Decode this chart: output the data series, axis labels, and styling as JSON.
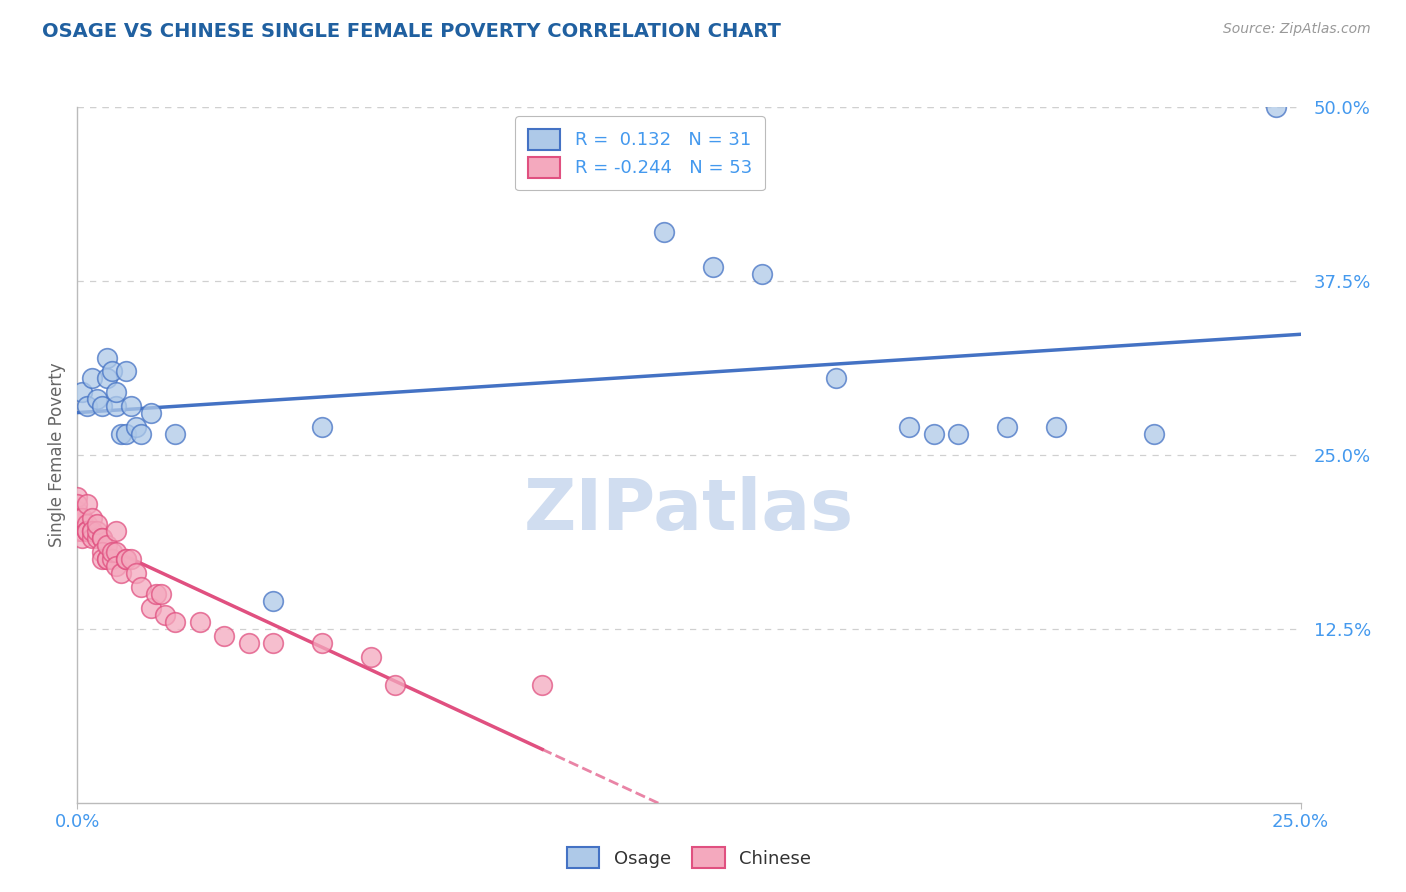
{
  "title": "OSAGE VS CHINESE SINGLE FEMALE POVERTY CORRELATION CHART",
  "source_text": "Source: ZipAtlas.com",
  "ylabel": "Single Female Poverty",
  "xlim": [
    0.0,
    0.25
  ],
  "ylim": [
    0.0,
    0.5
  ],
  "ytick_labels": [
    "12.5%",
    "25.0%",
    "37.5%",
    "50.0%"
  ],
  "ytick_vals": [
    0.125,
    0.25,
    0.375,
    0.5
  ],
  "xtick_labels": [
    "0.0%",
    "25.0%"
  ],
  "xtick_vals": [
    0.0,
    0.25
  ],
  "legend_r_osage": "0.132",
  "legend_n_osage": "31",
  "legend_r_chinese": "-0.244",
  "legend_n_chinese": "53",
  "osage_color": "#aec9e8",
  "chinese_color": "#f4a9be",
  "line_osage_color": "#4472c4",
  "line_chinese_color": "#e05080",
  "title_color": "#2060a0",
  "axis_label_color": "#666666",
  "tick_color": "#4499ee",
  "grid_color": "#d0d0d0",
  "background_color": "#ffffff",
  "osage_x": [
    0.001,
    0.002,
    0.003,
    0.004,
    0.005,
    0.006,
    0.006,
    0.007,
    0.008,
    0.008,
    0.009,
    0.01,
    0.01,
    0.011,
    0.012,
    0.013,
    0.015,
    0.02,
    0.04,
    0.05,
    0.12,
    0.13,
    0.14,
    0.155,
    0.17,
    0.175,
    0.18,
    0.19,
    0.2,
    0.22,
    0.245
  ],
  "osage_y": [
    0.295,
    0.285,
    0.305,
    0.29,
    0.285,
    0.305,
    0.32,
    0.31,
    0.285,
    0.295,
    0.265,
    0.31,
    0.265,
    0.285,
    0.27,
    0.265,
    0.28,
    0.265,
    0.145,
    0.27,
    0.41,
    0.385,
    0.38,
    0.305,
    0.27,
    0.265,
    0.265,
    0.27,
    0.27,
    0.265,
    0.5
  ],
  "chinese_x": [
    0.0,
    0.0,
    0.0,
    0.0,
    0.0,
    0.001,
    0.001,
    0.001,
    0.001,
    0.001,
    0.002,
    0.002,
    0.002,
    0.002,
    0.002,
    0.003,
    0.003,
    0.003,
    0.003,
    0.004,
    0.004,
    0.004,
    0.005,
    0.005,
    0.005,
    0.005,
    0.006,
    0.006,
    0.006,
    0.007,
    0.007,
    0.008,
    0.008,
    0.008,
    0.009,
    0.01,
    0.01,
    0.011,
    0.012,
    0.013,
    0.015,
    0.016,
    0.017,
    0.018,
    0.02,
    0.025,
    0.03,
    0.035,
    0.04,
    0.05,
    0.06,
    0.065,
    0.095
  ],
  "chinese_y": [
    0.195,
    0.21,
    0.22,
    0.215,
    0.205,
    0.205,
    0.195,
    0.195,
    0.19,
    0.205,
    0.2,
    0.195,
    0.195,
    0.195,
    0.215,
    0.195,
    0.19,
    0.205,
    0.195,
    0.19,
    0.195,
    0.2,
    0.19,
    0.19,
    0.18,
    0.175,
    0.175,
    0.175,
    0.185,
    0.175,
    0.18,
    0.18,
    0.17,
    0.195,
    0.165,
    0.175,
    0.175,
    0.175,
    0.165,
    0.155,
    0.14,
    0.15,
    0.15,
    0.135,
    0.13,
    0.13,
    0.12,
    0.115,
    0.115,
    0.115,
    0.105,
    0.085,
    0.085
  ],
  "watermark_text": "ZIPatlas",
  "watermark_color": "#d0ddf0"
}
